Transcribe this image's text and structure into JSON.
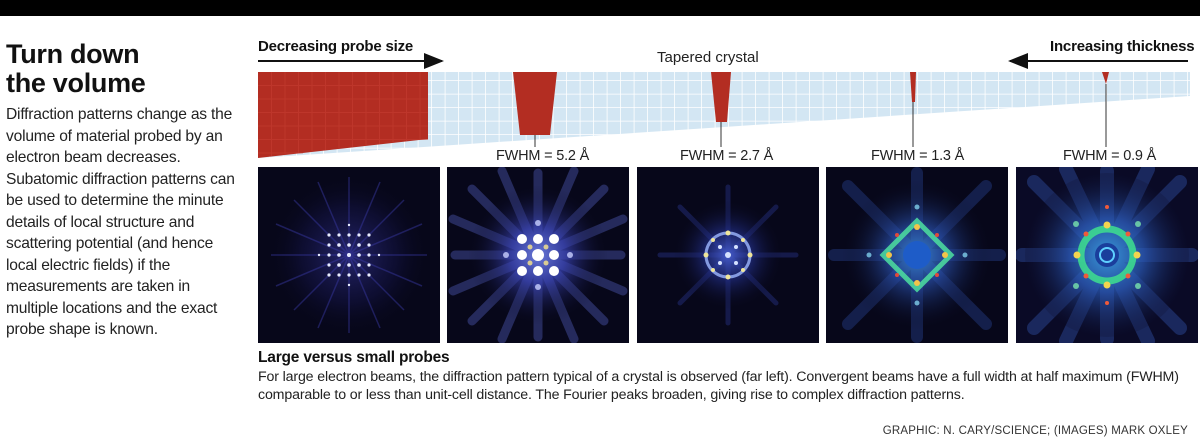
{
  "headline": {
    "line1": "Turn down",
    "line2": "the volume"
  },
  "intro_text": "Diffraction patterns change as the volume of material probed by an electron beam decreases. Subatomic diffraction patterns can be used to determine the minute details of local structure and scattering potential (and hence local electric fields) if the measurements are taken in multiple locations and the exact probe shape is known.",
  "diagram": {
    "left_arrow_label": "Decreasing probe size",
    "right_arrow_label": "Increasing thickness",
    "crystal_label": "Tapered crystal",
    "colors": {
      "probe": "#b32d22",
      "crystal_cell": "#d3e6f3",
      "crystal_line": "#ffffff",
      "pattern_bg": "#07071a"
    },
    "probes": [
      {
        "label": "FWHM = 5.2 Å"
      },
      {
        "label": "FWHM = 2.7 Å"
      },
      {
        "label": "FWHM = 1.3 Å"
      },
      {
        "label": "FWHM = 0.9 Å"
      }
    ]
  },
  "patterns": [
    {
      "name": "large-probe-pattern"
    },
    {
      "name": "fwhm-5-2-pattern"
    },
    {
      "name": "fwhm-2-7-pattern"
    },
    {
      "name": "fwhm-1-3-pattern"
    },
    {
      "name": "fwhm-0-9-pattern"
    }
  ],
  "bottom": {
    "title": "Large versus small probes",
    "text": "For large electron beams, the diffraction pattern typical of a crystal is observed (far left). Convergent beams have a full width at half maximum (FWHM) comparable to or less than unit-cell distance. The Fourier peaks broaden, giving rise to complex diffraction patterns."
  },
  "credit": "GRAPHIC: N. CARY/SCIENCE; (IMAGES) MARK OXLEY"
}
